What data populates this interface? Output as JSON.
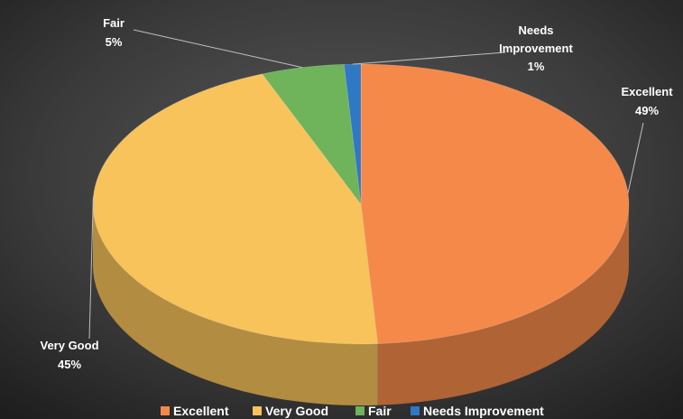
{
  "chart_data": {
    "type": "pie",
    "title": "",
    "style": "3d",
    "categories": [
      "Excellent",
      "Very Good",
      "Fair",
      "Needs Improvement"
    ],
    "values": [
      49,
      45,
      5,
      1
    ],
    "labels": {
      "excellent": {
        "name": "Excellent",
        "pct": "49%"
      },
      "very_good": {
        "name": "Very Good",
        "pct": "45%"
      },
      "fair": {
        "name": "Fair",
        "pct": "5%"
      },
      "needs_line1": "Needs",
      "needs_line2": "Improvement",
      "needs_pct": "1%"
    },
    "legend": {
      "position": "bottom",
      "items": [
        "Excellent",
        "Very Good",
        "Fair",
        "Needs Improvement"
      ]
    },
    "colors": {
      "excellent": "#f5894a",
      "very_good": "#f7c35a",
      "fair": "#6fb35a",
      "needs_improvement": "#2f78c4",
      "background": "#3c3c3c"
    }
  }
}
